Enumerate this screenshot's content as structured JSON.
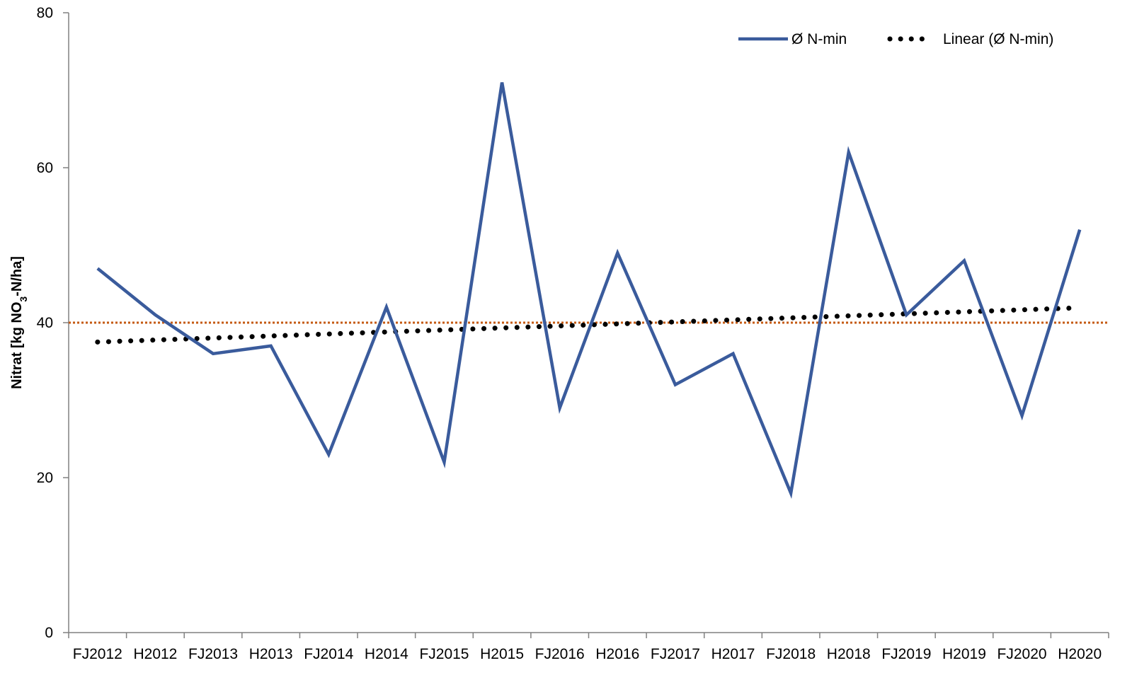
{
  "chart_data": {
    "type": "line",
    "title": "",
    "xlabel": "",
    "ylabel": {
      "prefix": "Nitrat [kg NO",
      "sub": "3",
      "suffix": "-N/ha]"
    },
    "ylim": [
      0,
      80
    ],
    "yticks": [
      0,
      20,
      40,
      60,
      80
    ],
    "grid": false,
    "legend_position": "top-right",
    "categories": [
      "FJ2012",
      "H2012",
      "FJ2013",
      "H2013",
      "FJ2014",
      "H2014",
      "FJ2015",
      "H2015",
      "FJ2016",
      "H2016",
      "FJ2017",
      "H2017",
      "FJ2018",
      "H2018",
      "FJ2019",
      "H2019",
      "FJ2020",
      "H2020"
    ],
    "series": [
      {
        "name": "Ø N-min",
        "style": "solid",
        "color": "#3a5b9c",
        "values": [
          47,
          41,
          36,
          37,
          23,
          42,
          22,
          71,
          29,
          49,
          32,
          36,
          18,
          62,
          41,
          48,
          28,
          52
        ]
      },
      {
        "name": "Linear (Ø N-min)",
        "style": "dotted",
        "color": "#000000",
        "values": [
          37.5,
          37.76,
          38.02,
          38.28,
          38.54,
          38.8,
          39.06,
          39.32,
          39.58,
          39.84,
          40.1,
          40.36,
          40.62,
          40.88,
          41.14,
          41.4,
          41.66,
          41.92
        ]
      }
    ],
    "reference_line": {
      "value": 40,
      "color": "#c55a11",
      "style": "dotted"
    }
  }
}
